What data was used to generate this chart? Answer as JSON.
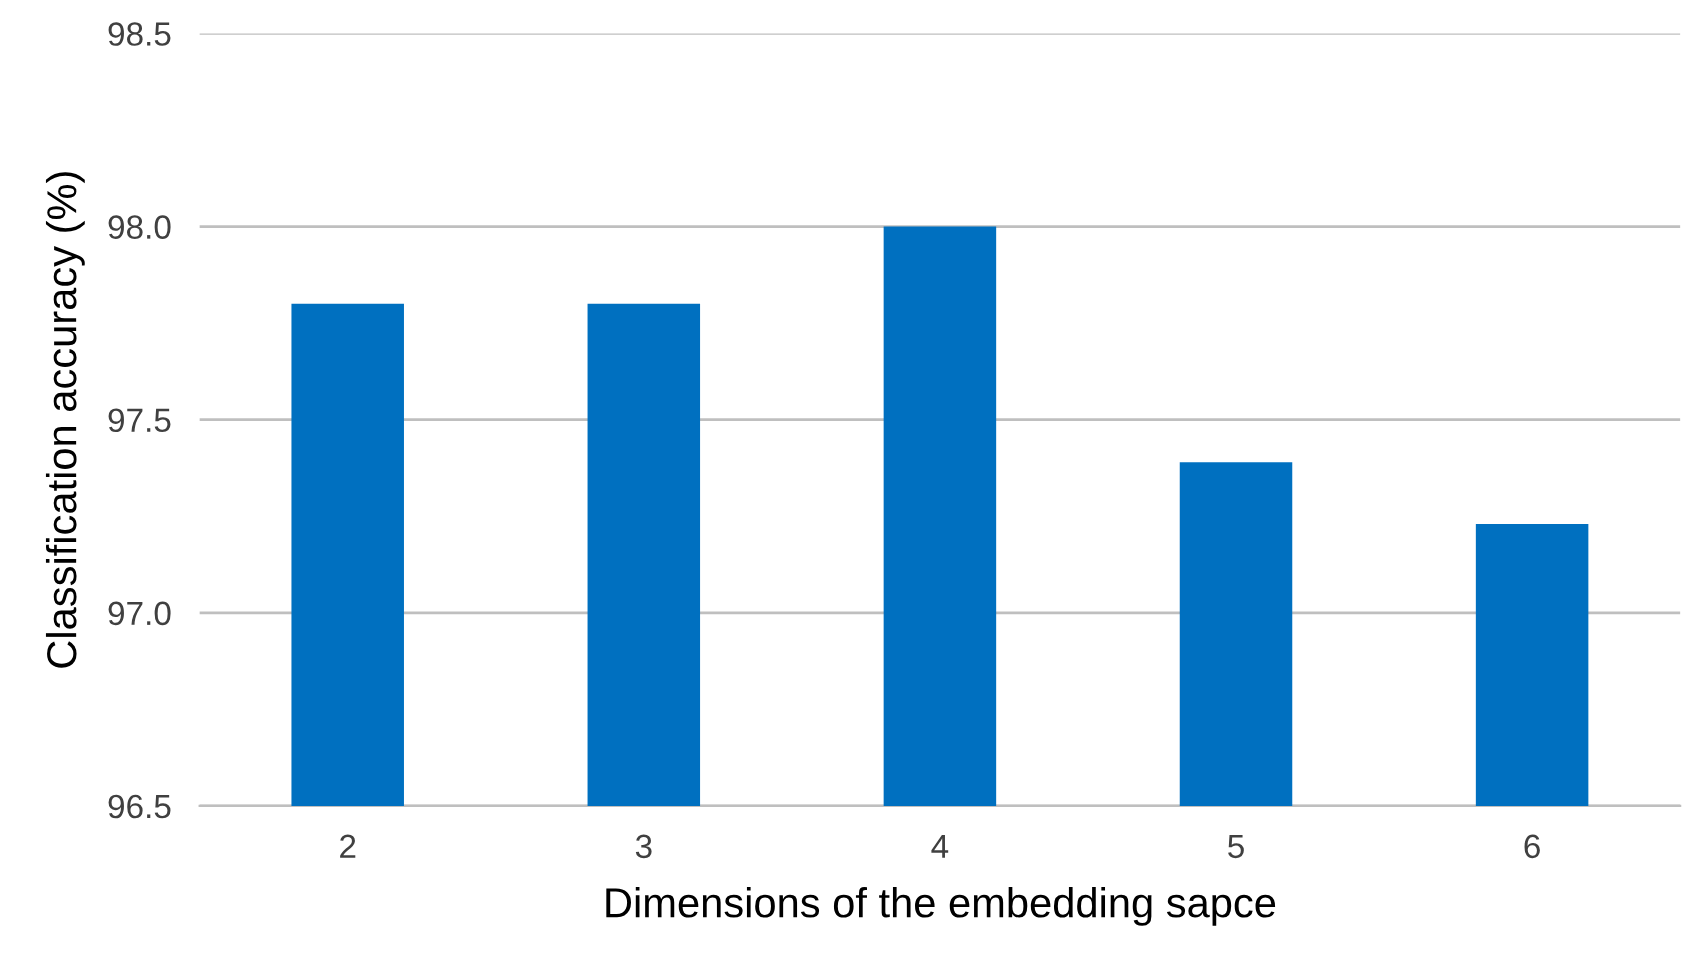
{
  "chart_data": {
    "type": "bar",
    "xlabel": "Dimensions of the embedding sapce",
    "ylabel": "Classification accuracy (%)",
    "categories": [
      "2",
      "3",
      "4",
      "5",
      "6"
    ],
    "values": [
      97.8,
      97.8,
      98.0,
      97.39,
      97.23
    ],
    "color": "#0070c0",
    "ylim": [
      96.5,
      98.5
    ],
    "yticks": [
      {
        "value": 96.5,
        "label": "96.5"
      },
      {
        "value": 97.0,
        "label": "97.0"
      },
      {
        "value": 97.5,
        "label": "97.5"
      },
      {
        "value": 98.0,
        "label": "98.0"
      },
      {
        "value": 98.5,
        "label": "98.5"
      }
    ],
    "grid": "y",
    "legend": false
  }
}
